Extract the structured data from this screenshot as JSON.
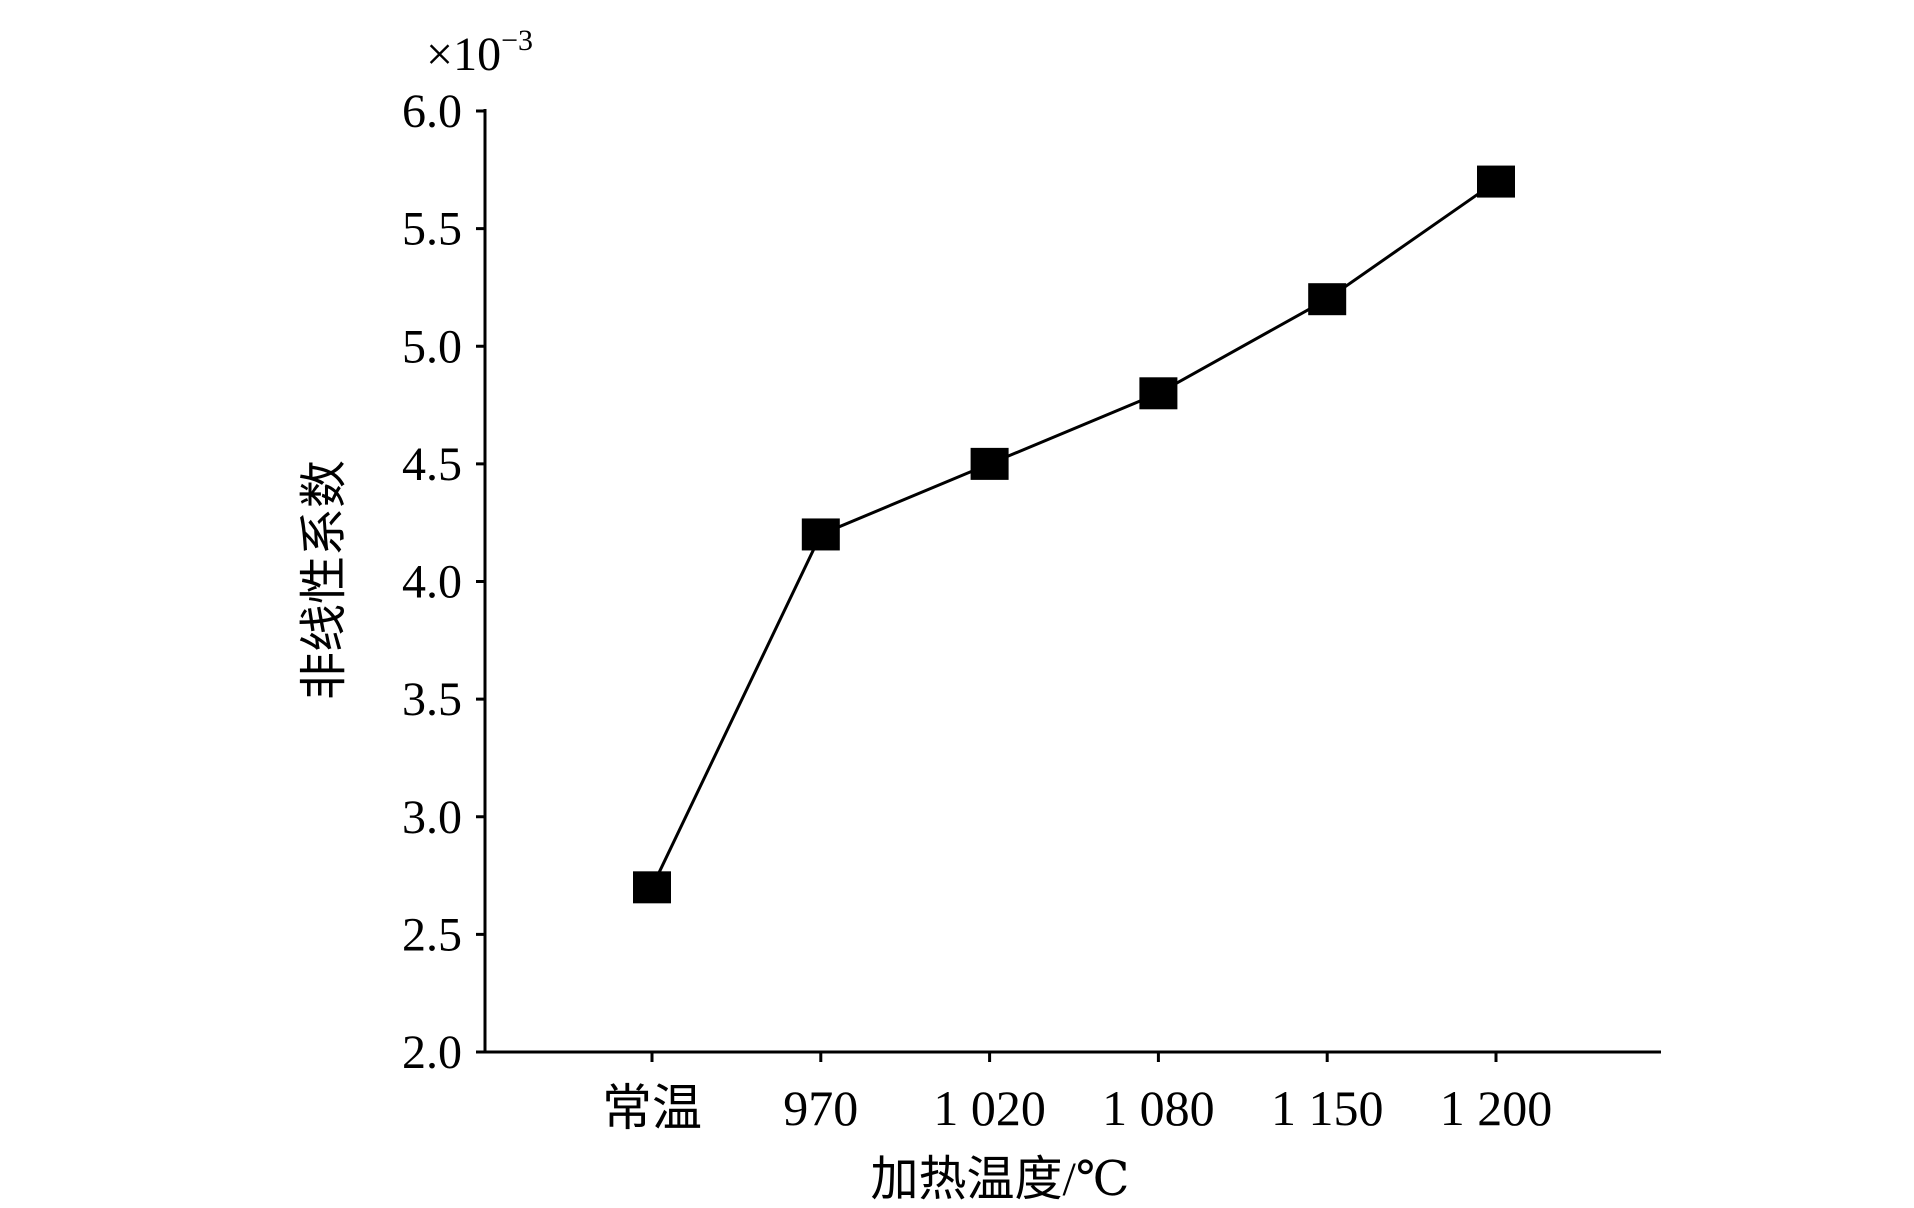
{
  "chart_data": {
    "type": "line",
    "title": "",
    "xlabel": "加热温度/℃",
    "ylabel": "非线性系数",
    "y_multiplier": "×10",
    "y_multiplier_exp": "−3",
    "categories": [
      "常温",
      "970",
      "1 020",
      "1 080",
      "1 150",
      "1 200"
    ],
    "series": [
      {
        "name": "非线性系数",
        "values": [
          2.7,
          4.2,
          4.5,
          4.8,
          5.2,
          5.7
        ],
        "color": "#000000",
        "marker": "square"
      }
    ],
    "ylim": [
      2.0,
      6.0
    ],
    "yticks": [
      "2.0",
      "2.5",
      "3.0",
      "3.5",
      "4.0",
      "4.5",
      "5.0",
      "5.5",
      "6.0"
    ],
    "grid": false,
    "legend": "none"
  }
}
